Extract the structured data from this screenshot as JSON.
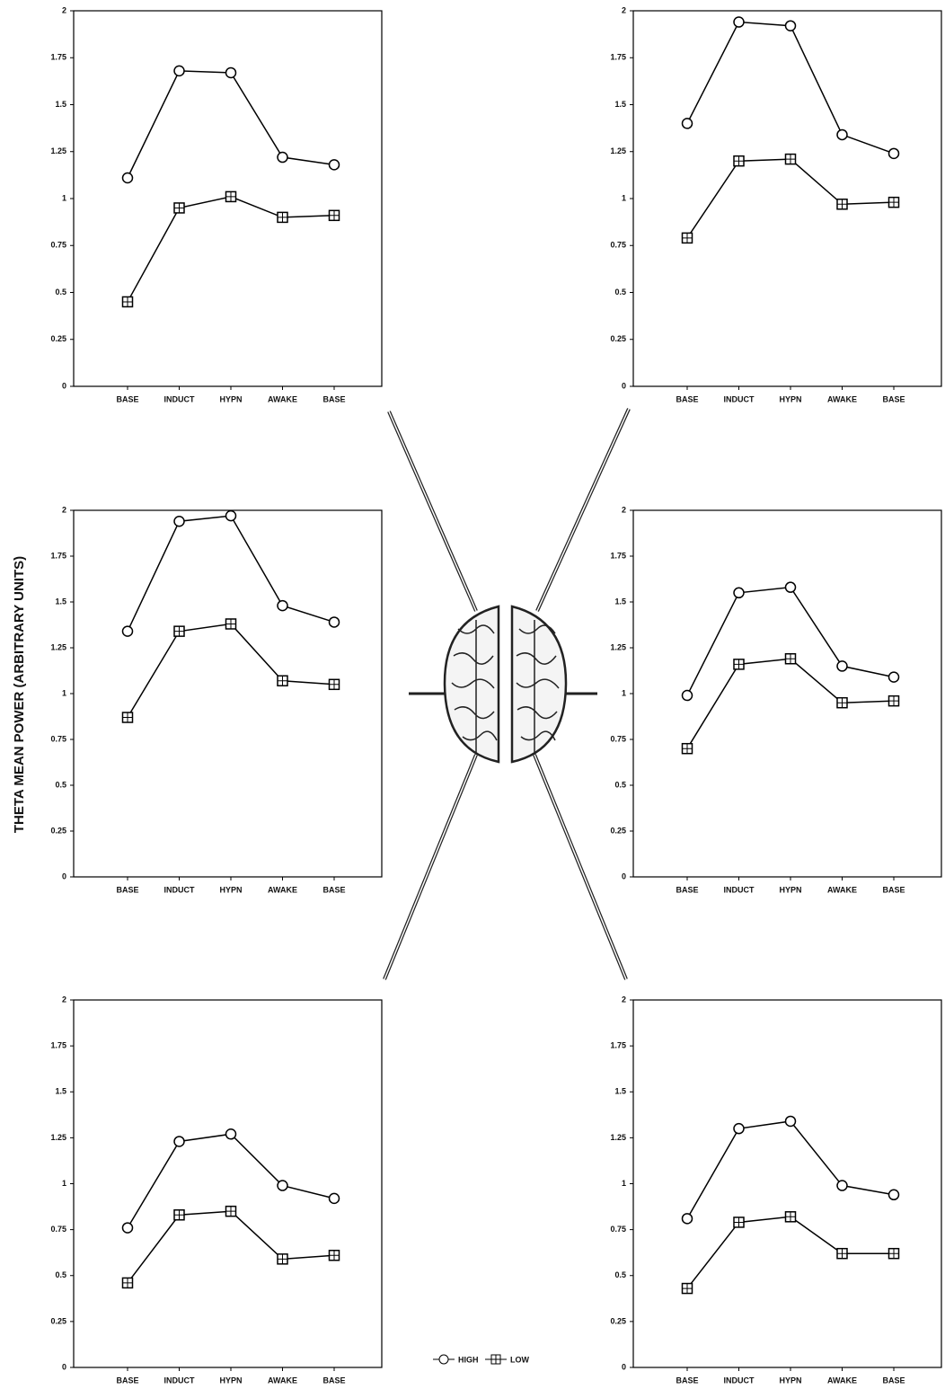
{
  "y_axis_label": "THETA MEAN POWER (ARBITRARY UNITS)",
  "chart_data": [
    {
      "type": "line",
      "categories": [
        "BASE",
        "INDUCT",
        "HYPN",
        "AWAKE",
        "BASE"
      ],
      "ylim": [
        0,
        2
      ],
      "yticks": [
        0,
        0.25,
        0.5,
        0.75,
        1,
        1.25,
        1.5,
        1.75,
        2
      ],
      "grid": false,
      "series": [
        {
          "name": "HIGH",
          "color": "#000000",
          "marker": "circle",
          "values": [
            1.11,
            1.68,
            1.67,
            1.22,
            1.18
          ]
        },
        {
          "name": "LOW",
          "color": "#000000",
          "marker": "square-cross",
          "values": [
            0.45,
            0.95,
            1.01,
            0.9,
            0.91
          ]
        }
      ]
    },
    {
      "type": "line",
      "categories": [
        "BASE",
        "INDUCT",
        "HYPN",
        "AWAKE",
        "BASE"
      ],
      "ylim": [
        0,
        2
      ],
      "yticks": [
        0,
        0.25,
        0.5,
        0.75,
        1,
        1.25,
        1.5,
        1.75,
        2
      ],
      "grid": false,
      "series": [
        {
          "name": "HIGH",
          "color": "#000000",
          "marker": "circle",
          "values": [
            1.4,
            1.94,
            1.92,
            1.34,
            1.24
          ]
        },
        {
          "name": "LOW",
          "color": "#000000",
          "marker": "square-cross",
          "values": [
            0.79,
            1.2,
            1.21,
            0.97,
            0.98
          ]
        }
      ]
    },
    {
      "type": "line",
      "categories": [
        "BASE",
        "INDUCT",
        "HYPN",
        "AWAKE",
        "BASE"
      ],
      "ylim": [
        0,
        2
      ],
      "yticks": [
        0,
        0.25,
        0.5,
        0.75,
        1,
        1.25,
        1.5,
        1.75,
        2
      ],
      "grid": false,
      "series": [
        {
          "name": "HIGH",
          "color": "#000000",
          "marker": "circle",
          "values": [
            1.34,
            1.94,
            1.97,
            1.48,
            1.39
          ]
        },
        {
          "name": "LOW",
          "color": "#000000",
          "marker": "square-cross",
          "values": [
            0.87,
            1.34,
            1.38,
            1.07,
            1.05
          ]
        }
      ]
    },
    {
      "type": "line",
      "categories": [
        "BASE",
        "INDUCT",
        "HYPN",
        "AWAKE",
        "BASE"
      ],
      "ylim": [
        0,
        2
      ],
      "yticks": [
        0,
        0.25,
        0.5,
        0.75,
        1,
        1.25,
        1.5,
        1.75,
        2
      ],
      "grid": false,
      "series": [
        {
          "name": "HIGH",
          "color": "#000000",
          "marker": "circle",
          "values": [
            0.99,
            1.55,
            1.58,
            1.15,
            1.09
          ]
        },
        {
          "name": "LOW",
          "color": "#000000",
          "marker": "square-cross",
          "values": [
            0.7,
            1.16,
            1.19,
            0.95,
            0.96
          ]
        }
      ]
    },
    {
      "type": "line",
      "categories": [
        "BASE",
        "INDUCT",
        "HYPN",
        "AWAKE",
        "BASE"
      ],
      "ylim": [
        0,
        2
      ],
      "yticks": [
        0,
        0.25,
        0.5,
        0.75,
        1,
        1.25,
        1.5,
        1.75,
        2
      ],
      "grid": false,
      "series": [
        {
          "name": "HIGH",
          "color": "#000000",
          "marker": "circle",
          "values": [
            0.76,
            1.23,
            1.27,
            0.99,
            0.92
          ]
        },
        {
          "name": "LOW",
          "color": "#000000",
          "marker": "square-cross",
          "values": [
            0.46,
            0.83,
            0.85,
            0.59,
            0.61
          ]
        }
      ]
    },
    {
      "type": "line",
      "categories": [
        "BASE",
        "INDUCT",
        "HYPN",
        "AWAKE",
        "BASE"
      ],
      "ylim": [
        0,
        2
      ],
      "yticks": [
        0,
        0.25,
        0.5,
        0.75,
        1,
        1.25,
        1.5,
        1.75,
        2
      ],
      "grid": false,
      "series": [
        {
          "name": "HIGH",
          "color": "#000000",
          "marker": "circle",
          "values": [
            0.81,
            1.3,
            1.34,
            0.99,
            0.94
          ]
        },
        {
          "name": "LOW",
          "color": "#000000",
          "marker": "square-cross",
          "values": [
            0.43,
            0.79,
            0.82,
            0.62,
            0.62
          ]
        }
      ]
    }
  ]
}
